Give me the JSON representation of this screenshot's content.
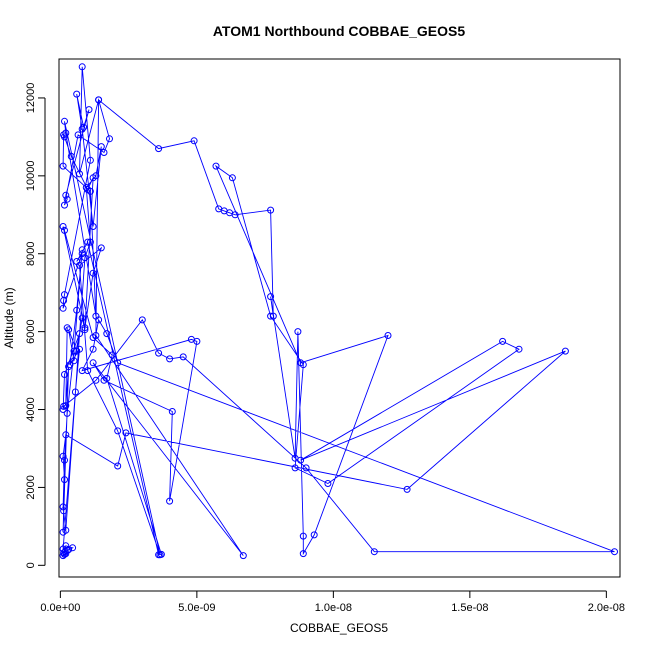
{
  "chart_data": {
    "type": "line",
    "title": "ATOM1 Northbound COBBAE_GEOS5",
    "xlabel": "COBBAE_GEOS5",
    "ylabel": "Altitude (m)",
    "xlim": [
      -5e-11,
      2.05e-08
    ],
    "ylim": [
      -300,
      13000
    ],
    "x_ticks": [
      0,
      5e-09,
      1e-08,
      1.5e-08,
      2e-08
    ],
    "x_tick_labels": [
      "0.0e+00",
      "5.0e-09",
      "1.0e-08",
      "1.5e-08",
      "2.0e-08"
    ],
    "y_ticks": [
      0,
      2000,
      4000,
      6000,
      8000,
      10000,
      12000
    ],
    "y_tick_labels": [
      "0",
      "2000",
      "4000",
      "6000",
      "8000",
      "10000",
      "12000"
    ],
    "grid": false,
    "legend": "none",
    "series_color": "#0000ff",
    "marker": "open-circle",
    "series": [
      {
        "x": [
          1e-10,
          1.5e-10,
          2e-10,
          1.2e-10,
          1.8e-10,
          2.5e-10,
          3e-10,
          4.5e-10,
          2e-10,
          1e-10,
          5.5e-10,
          7e-10,
          3.5e-10,
          6e-10,
          8e-10,
          5e-10,
          2.5e-10,
          1.5e-10,
          1e-10,
          2e-10,
          9e-10,
          1.1e-09,
          9.5e-10,
          1.3e-09,
          1.5e-09,
          1.2e-09,
          8e-10,
          6e-10,
          8.5e-10,
          1.05e-09,
          2e-10,
          2.5e-10,
          1.5e-10,
          6.5e-10,
          1.6e-09,
          1.8e-09,
          1.4e-09,
          7e-10,
          8e-10,
          1.1e-09,
          1.5e-10,
          1.2e-10,
          1e-10,
          8e-10,
          6e-10,
          1e-09,
          3.6e-09,
          3.7e-09,
          1.7e-09,
          1.9e-09,
          1.2e-09,
          1.5e-10,
          1e-10,
          9e-10,
          1.2e-09,
          1.5e-09,
          7e-10,
          1e-09,
          2.1e-09,
          3.65e-09,
          1.5e-10,
          2e-10,
          1.3e-09,
          1.1e-09,
          1e-10,
          1.2e-10,
          1.5e-10,
          4e-10,
          1e-09,
          1.2e-09,
          9e-10,
          8e-10,
          6e-10,
          3e-10,
          5e-10,
          7e-10,
          1.5e-10,
          1e-10,
          1.2e-10,
          1.3e-09,
          3e-09,
          3.6e-09,
          4e-09,
          4.5e-09,
          9e-09,
          1.15e-08,
          2.03e-08,
          2.1e-09,
          1.7e-09,
          1.4e-09,
          1.2e-09,
          8e-10,
          4.8e-09,
          5e-09,
          4e-09,
          4.1e-09,
          1.6e-09,
          1.2e-09,
          6.7e-09,
          1.3e-09,
          1.4e-09,
          3.6e-09,
          4.9e-09,
          5.8e-09,
          6e-09,
          6.2e-09,
          6.4e-09,
          7.7e-09,
          7.8e-09,
          7.7e-09,
          8.6e-09,
          8.7e-09,
          8.9e-09,
          8.9e-09,
          9.3e-09,
          1.2e-08,
          8.8e-09,
          5.7e-09,
          6.3e-09,
          7.7e-09,
          8.9e-09,
          8.6e-09,
          9.8e-09,
          1.68e-08,
          1.62e-08,
          8.8e-09,
          1.85e-08,
          1.27e-08,
          2.4e-09,
          2.1e-09,
          2e-10,
          1e-10,
          1.5e-10,
          1.2e-10,
          1e-10,
          3e-10,
          2e-10,
          2.5e-10
        ],
        "y": [
          250,
          280,
          300,
          320,
          350,
          380,
          400,
          450,
          500,
          420,
          4450,
          5550,
          5150,
          6550,
          8100,
          5500,
          3900,
          2700,
          1500,
          900,
          7900,
          8300,
          9700,
          10000,
          10750,
          8700,
          11200,
          12100,
          11250,
          11700,
          9500,
          9400,
          9250,
          11050,
          10600,
          10950,
          11950,
          10050,
          12800,
          10400,
          6950,
          6800,
          6600,
          8000,
          7800,
          8300,
          270,
          280,
          4800,
          5400,
          5850,
          8600,
          8700,
          6100,
          7500,
          8150,
          7700,
          5000,
          3450,
          270,
          11400,
          11100,
          6400,
          9600,
          10250,
          11050,
          11000,
          10500,
          9650,
          9950,
          6050,
          6350,
          5500,
          6050,
          5250,
          5950,
          4900,
          4000,
          4080,
          4750,
          6300,
          5450,
          5300,
          5350,
          2500,
          350,
          350,
          5200,
          5950,
          6300,
          5550,
          5000,
          5800,
          5750,
          1650,
          3950,
          4750,
          5200,
          250,
          5900,
          11950,
          10700,
          10900,
          9150,
          9100,
          9050,
          9000,
          9120,
          6400,
          6900,
          2750,
          6000,
          750,
          300,
          780,
          5900,
          5200,
          10250,
          9950,
          6400,
          5150,
          2500,
          2100,
          5550,
          5750,
          2700,
          5500,
          1950,
          3400,
          2550,
          3350,
          2800,
          2200,
          1400,
          850,
          5100,
          4100,
          6100
        ]
      }
    ]
  }
}
